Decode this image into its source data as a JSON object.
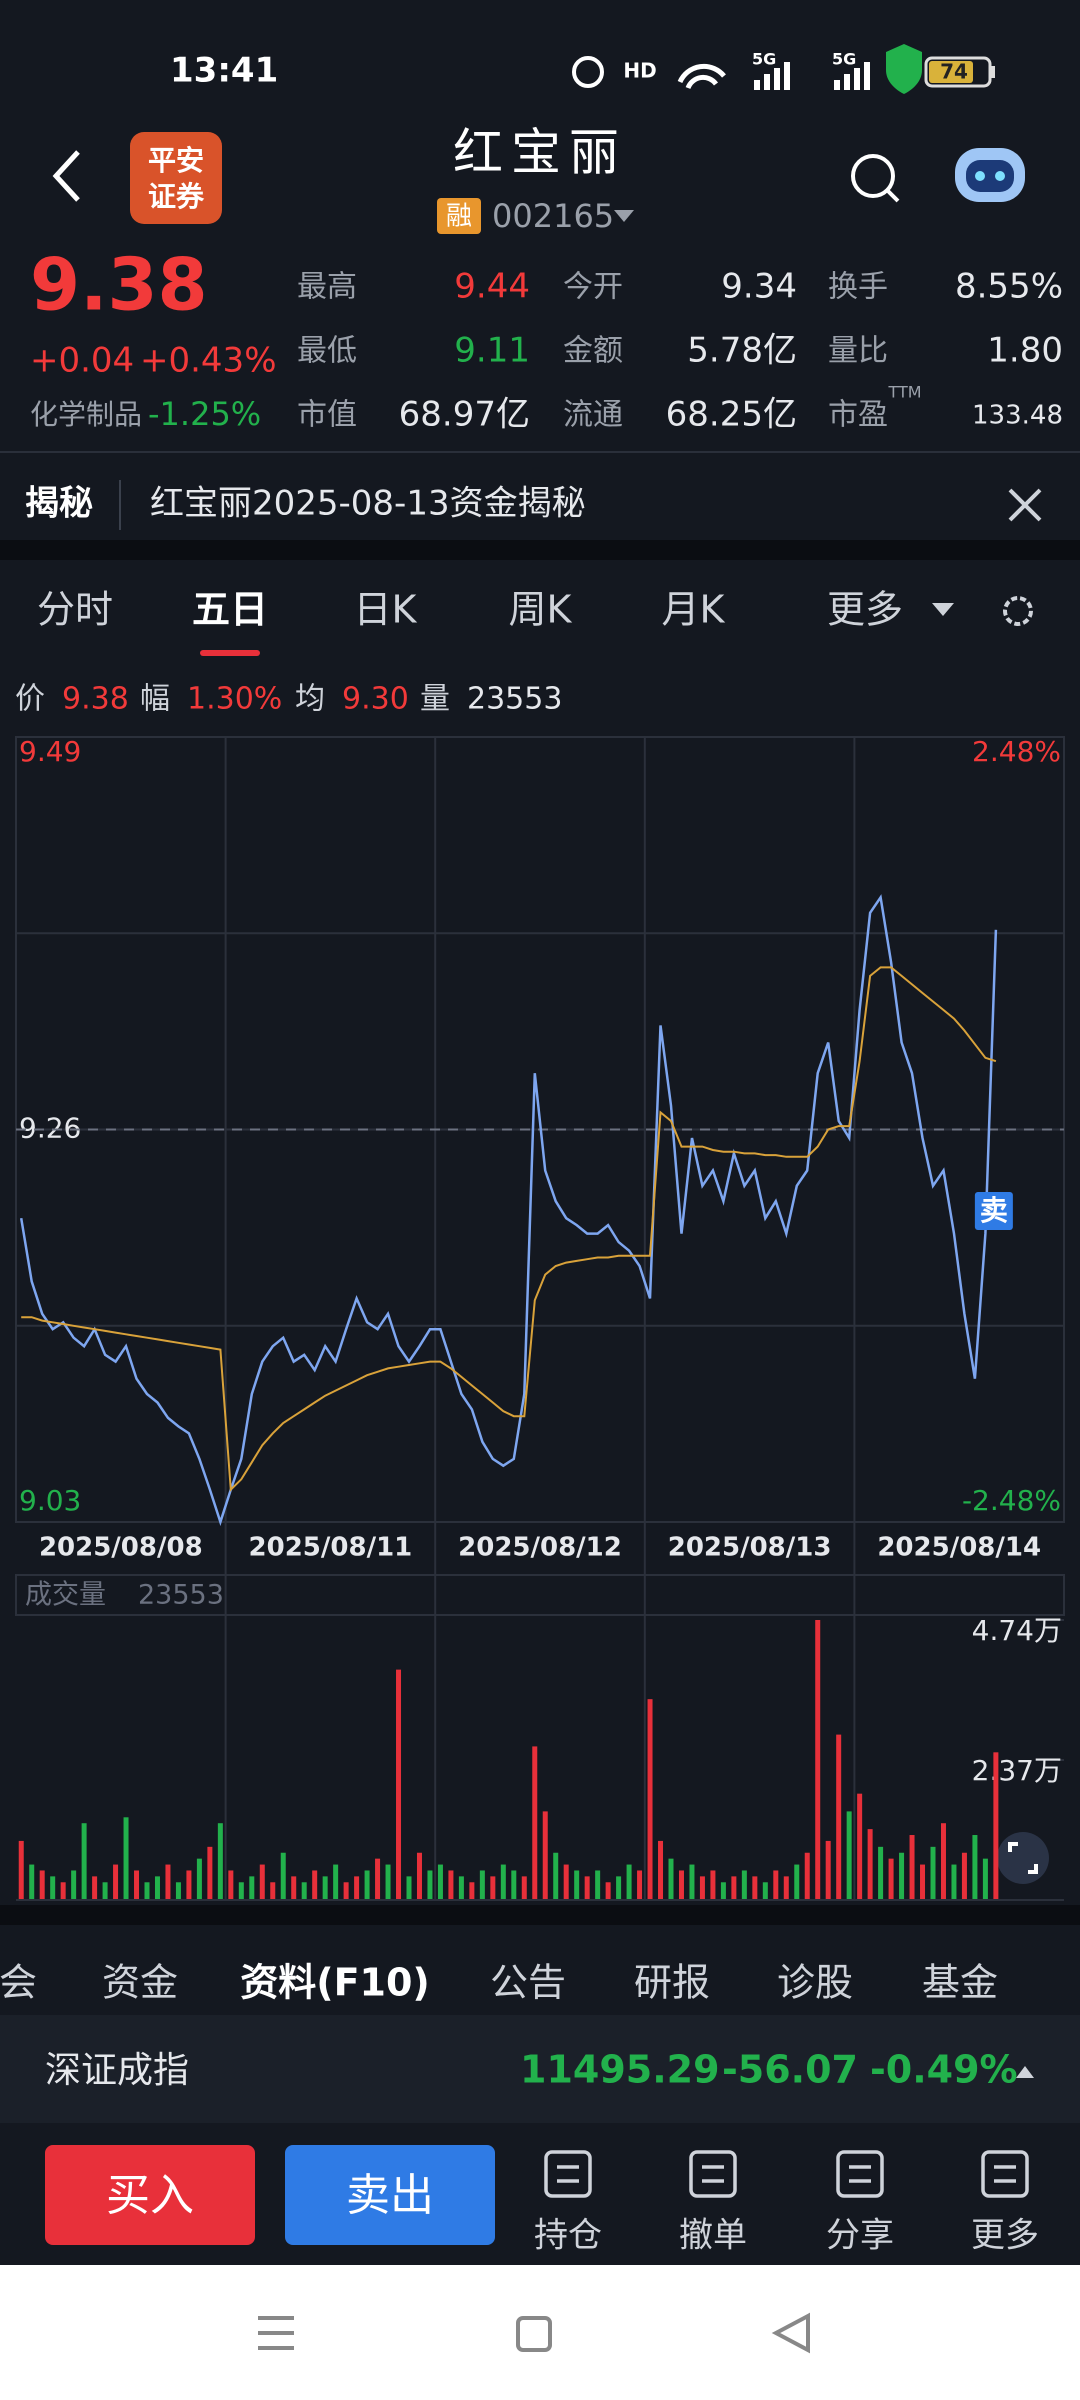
{
  "status_bar": {
    "time": "13:41",
    "hd": "HD",
    "signals": [
      "5G",
      "5G"
    ],
    "battery": "74"
  },
  "header": {
    "logo": [
      "平安",
      "证券"
    ],
    "title": "红宝丽",
    "badge": "融",
    "code": "002165"
  },
  "quote": {
    "price": "9.38",
    "change": "+0.04",
    "change_pct": "+0.43%",
    "sector": "化学制品",
    "sector_pct": "-1.25%",
    "ttm": "TTM",
    "fields": [
      {
        "label": "最高",
        "value": "9.44",
        "color": "#f23a3a"
      },
      {
        "label": "今开",
        "value": "9.34",
        "color": "#e6e8ec"
      },
      {
        "label": "换手",
        "value": "8.55%",
        "color": "#e6e8ec"
      },
      {
        "label": "最低",
        "value": "9.11",
        "color": "#22b14c"
      },
      {
        "label": "金额",
        "value": "5.78亿",
        "color": "#e6e8ec"
      },
      {
        "label": "量比",
        "value": "1.80",
        "color": "#e6e8ec"
      },
      {
        "label": "市值",
        "value": "68.97亿",
        "color": "#e6e8ec"
      },
      {
        "label": "流通",
        "value": "68.25亿",
        "color": "#e6e8ec"
      },
      {
        "label": "市盈",
        "value": "133.48",
        "color": "#e6e8ec"
      }
    ]
  },
  "notice": {
    "tag": "揭秘",
    "text": "红宝丽2025-08-13资金揭秘"
  },
  "tabs": {
    "items": [
      "分时",
      "五日",
      "日K",
      "周K",
      "月K",
      "更多"
    ],
    "selected": 1
  },
  "info": {
    "items": [
      {
        "label": "价",
        "value": "9.38",
        "color": "#f23a3a"
      },
      {
        "label": "幅",
        "value": "1.30%",
        "color": "#f23a3a"
      },
      {
        "label": "均",
        "value": "9.30",
        "color": "#f23a3a"
      },
      {
        "label": "量",
        "value": "23553",
        "color": "#e6e8ec"
      }
    ]
  },
  "chart": {
    "type": "line",
    "categories": [
      "2025/08/08",
      "2025/08/11",
      "2025/08/12",
      "2025/08/13",
      "2025/08/14"
    ],
    "ylim": [
      9.03,
      9.49
    ],
    "yticks": [
      9.49,
      9.26,
      9.03
    ],
    "reference": 9.26,
    "y2lim": [
      -2.48,
      2.48
    ],
    "y2ticks": [
      {
        "value": 2.48,
        "label": "2.48%"
      },
      {
        "value": -2.48,
        "label": "-2.48%"
      }
    ],
    "series": [
      {
        "color": "#7ea6f0",
        "values": [
          9.208,
          9.171,
          9.152,
          9.143,
          9.147,
          9.138,
          9.133,
          9.143,
          9.128,
          9.124,
          9.133,
          9.114,
          9.105,
          9.1,
          9.091,
          9.086,
          9.082,
          9.067,
          9.049,
          9.03,
          9.049,
          9.067,
          9.105,
          9.124,
          9.133,
          9.138,
          9.124,
          9.128,
          9.119,
          9.133,
          9.124,
          9.143,
          9.161,
          9.147,
          9.143,
          9.152,
          9.133,
          9.124,
          9.133,
          9.143,
          9.143,
          9.124,
          9.105,
          9.096,
          9.077,
          9.067,
          9.063,
          9.067,
          9.105,
          9.293,
          9.236,
          9.218,
          9.208,
          9.204,
          9.199,
          9.199,
          9.204,
          9.194,
          9.189,
          9.18,
          9.161,
          9.321,
          9.274,
          9.199,
          9.255,
          9.227,
          9.236,
          9.218,
          9.246,
          9.227,
          9.236,
          9.208,
          9.218,
          9.199,
          9.227,
          9.236,
          9.293,
          9.311,
          9.265,
          9.255,
          9.33,
          9.387,
          9.396,
          9.358,
          9.311,
          9.293,
          9.255,
          9.227,
          9.236,
          9.199,
          9.152,
          9.114,
          9.199,
          9.377
        ]
      },
      {
        "color": "#d9a23a",
        "values": [
          9.15,
          9.15,
          9.148,
          9.147,
          9.146,
          9.145,
          9.144,
          9.143,
          9.142,
          9.141,
          9.14,
          9.139,
          9.138,
          9.137,
          9.136,
          9.135,
          9.134,
          9.133,
          9.132,
          9.131,
          9.049,
          9.055,
          9.065,
          9.075,
          9.082,
          9.088,
          9.092,
          9.096,
          9.1,
          9.104,
          9.107,
          9.11,
          9.113,
          9.116,
          9.118,
          9.12,
          9.121,
          9.122,
          9.123,
          9.124,
          9.124,
          9.12,
          9.115,
          9.11,
          9.105,
          9.1,
          9.095,
          9.092,
          9.092,
          9.16,
          9.175,
          9.18,
          9.182,
          9.183,
          9.184,
          9.185,
          9.185,
          9.186,
          9.186,
          9.186,
          9.186,
          9.27,
          9.265,
          9.25,
          9.25,
          9.25,
          9.248,
          9.247,
          9.247,
          9.246,
          9.246,
          9.245,
          9.245,
          9.244,
          9.244,
          9.244,
          9.25,
          9.26,
          9.262,
          9.262,
          9.3,
          9.35,
          9.355,
          9.355,
          9.35,
          9.345,
          9.34,
          9.335,
          9.33,
          9.325,
          9.318,
          9.31,
          9.302,
          9.3
        ]
      }
    ],
    "marker": "卖"
  },
  "volume": {
    "title": "成交量",
    "value": "23553",
    "ylim": [
      0,
      4.74
    ],
    "yticks": [
      {
        "value": 4.74,
        "label": "4.74万"
      },
      {
        "value": 2.37,
        "label": "2.37万"
      }
    ],
    "up_color": "#e8303a",
    "down_color": "#22b14c",
    "values": [
      1.0,
      0.6,
      0.5,
      0.4,
      0.3,
      0.5,
      1.3,
      0.4,
      0.3,
      0.6,
      1.4,
      0.5,
      0.3,
      0.4,
      0.6,
      0.3,
      0.5,
      0.7,
      0.9,
      1.3,
      0.5,
      0.3,
      0.4,
      0.6,
      0.3,
      0.8,
      0.4,
      0.3,
      0.5,
      0.4,
      0.6,
      0.3,
      0.4,
      0.5,
      0.7,
      0.6,
      3.9,
      0.4,
      0.8,
      0.5,
      0.6,
      0.5,
      0.4,
      0.3,
      0.5,
      0.4,
      0.6,
      0.5,
      0.4,
      2.6,
      1.5,
      0.8,
      0.6,
      0.5,
      0.4,
      0.5,
      0.3,
      0.4,
      0.6,
      0.5,
      3.4,
      1.0,
      0.7,
      0.5,
      0.6,
      0.4,
      0.5,
      0.3,
      0.4,
      0.5,
      0.4,
      0.3,
      0.5,
      0.4,
      0.6,
      0.8,
      4.74,
      1.0,
      2.8,
      1.5,
      1.8,
      1.2,
      0.9,
      0.7,
      0.8,
      1.1,
      0.6,
      0.9,
      1.3,
      0.6,
      0.8,
      1.1,
      0.7,
      2.5
    ],
    "up": [
      true,
      false,
      true,
      false,
      true,
      false,
      false,
      true,
      false,
      true,
      false,
      true,
      false,
      false,
      true,
      false,
      true,
      false,
      true,
      false,
      true,
      false,
      false,
      true,
      true,
      false,
      true,
      false,
      true,
      false,
      false,
      true,
      true,
      false,
      true,
      false,
      true,
      false,
      true,
      false,
      false,
      true,
      false,
      true,
      false,
      true,
      false,
      false,
      true,
      true,
      true,
      false,
      true,
      false,
      true,
      false,
      true,
      false,
      false,
      true,
      true,
      true,
      false,
      true,
      false,
      true,
      true,
      false,
      true,
      false,
      true,
      false,
      true,
      true,
      false,
      true,
      true,
      true,
      true,
      false,
      true,
      true,
      false,
      true,
      false,
      true,
      true,
      false,
      true,
      false,
      true,
      false,
      false,
      true
    ]
  },
  "bottom_tabs": {
    "items": [
      "会",
      "资金",
      "资料(F10)",
      "公告",
      "研报",
      "诊股",
      "基金"
    ],
    "selected": 2
  },
  "index": {
    "name": "深证成指",
    "value": "11495.29",
    "change": "-56.07",
    "pct": "-0.49%"
  },
  "actions": {
    "buy": "买入",
    "sell": "卖出",
    "items": [
      "持仓",
      "撤单",
      "分享",
      "更多"
    ]
  }
}
